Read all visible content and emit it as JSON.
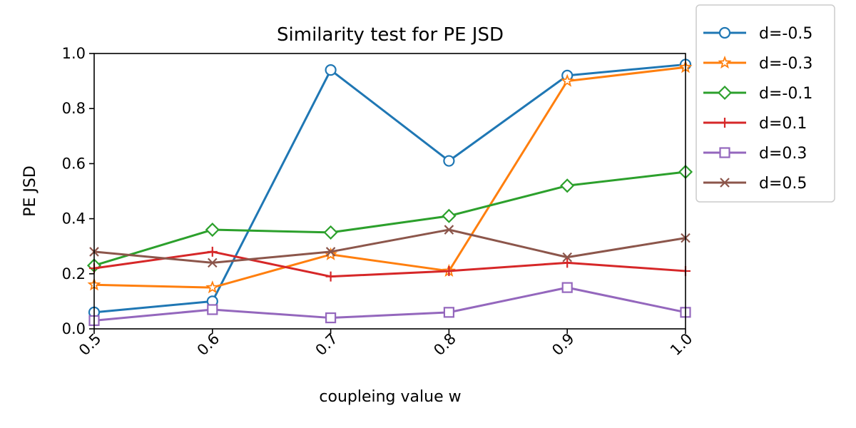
{
  "chart_data": {
    "type": "line",
    "title": "Similarity test for PE JSD",
    "xlabel": "coupleing value w",
    "ylabel": "PE JSD",
    "x": [
      0.5,
      0.6,
      0.7,
      0.8,
      0.9,
      1.0
    ],
    "x_tick_labels": [
      "0.5",
      "0.6",
      "0.7",
      "0.8",
      "0.9",
      "1.0"
    ],
    "y_ticks": [
      0.0,
      0.2,
      0.4,
      0.6,
      0.8,
      1.0
    ],
    "y_tick_labels": [
      "0.0",
      "0.2",
      "0.4",
      "0.6",
      "0.8",
      "1.0"
    ],
    "xlim": [
      0.5,
      1.0
    ],
    "ylim": [
      0.0,
      1.0
    ],
    "grid": false,
    "legend_position": "outside-top-right",
    "series": [
      {
        "name": "d=-0.5",
        "color": "#1f77b4",
        "marker": "circle",
        "values": [
          0.06,
          0.1,
          0.94,
          0.61,
          0.92,
          0.96
        ]
      },
      {
        "name": "d=-0.3",
        "color": "#ff7f0e",
        "marker": "star",
        "values": [
          0.16,
          0.15,
          0.27,
          0.21,
          0.9,
          0.95
        ]
      },
      {
        "name": "d=-0.1",
        "color": "#2ca02c",
        "marker": "diamond",
        "values": [
          0.23,
          0.36,
          0.35,
          0.41,
          0.52,
          0.57
        ]
      },
      {
        "name": "d=0.1",
        "color": "#d62728",
        "marker": "plus",
        "values": [
          0.22,
          0.28,
          0.19,
          0.21,
          0.24,
          0.21
        ]
      },
      {
        "name": "d=0.3",
        "color": "#9467bd",
        "marker": "square",
        "values": [
          0.03,
          0.07,
          0.04,
          0.06,
          0.15,
          0.06
        ]
      },
      {
        "name": "d=0.5",
        "color": "#8c564b",
        "marker": "x",
        "values": [
          0.28,
          0.24,
          0.28,
          0.36,
          0.26,
          0.33
        ]
      }
    ]
  }
}
